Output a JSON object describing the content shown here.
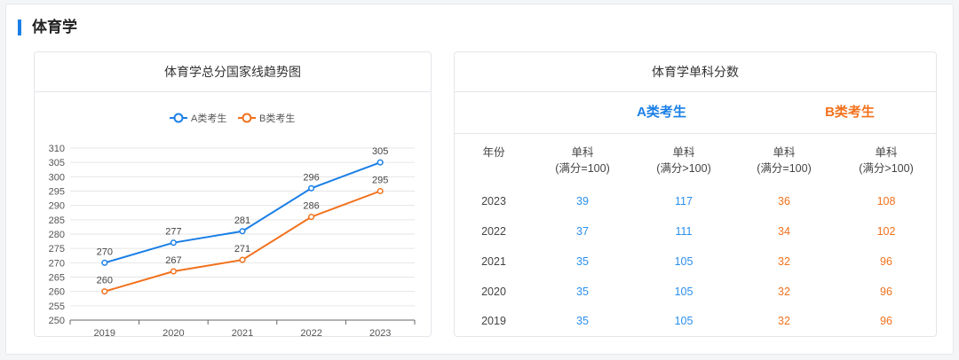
{
  "section": {
    "title": "体育学"
  },
  "chart_card": {
    "title": "体育学总分国家线趋势图"
  },
  "table_card": {
    "title": "体育学单科分数",
    "group_a": "A类考生",
    "group_b": "B类考生",
    "headers": {
      "year": "年份",
      "single100_top": "单科",
      "single100_bottom": "(满分=100)",
      "single_gt100_top": "单科",
      "single_gt100_bottom": "(满分>100)"
    },
    "rows": [
      {
        "year": "2023",
        "a100": "39",
        "a_gt": "117",
        "b100": "36",
        "b_gt": "108"
      },
      {
        "year": "2022",
        "a100": "37",
        "a_gt": "111",
        "b100": "34",
        "b_gt": "102"
      },
      {
        "year": "2021",
        "a100": "35",
        "a_gt": "105",
        "b100": "32",
        "b_gt": "96"
      },
      {
        "year": "2020",
        "a100": "35",
        "a_gt": "105",
        "b100": "32",
        "b_gt": "96"
      },
      {
        "year": "2019",
        "a100": "35",
        "a_gt": "105",
        "b100": "32",
        "b_gt": "96"
      }
    ]
  },
  "colors": {
    "a": "#1a7fe6",
    "b": "#f2711c",
    "accent": "#1a7fe6"
  },
  "chart_data": {
    "type": "line",
    "title": "体育学总分国家线趋势图",
    "categories": [
      "2019",
      "2020",
      "2021",
      "2022",
      "2023"
    ],
    "series": [
      {
        "name": "A类考生",
        "values": [
          270,
          277,
          281,
          296,
          305
        ]
      },
      {
        "name": "B类考生",
        "values": [
          260,
          267,
          271,
          286,
          295
        ]
      }
    ],
    "ylim": [
      250,
      310
    ],
    "yticks": [
      250,
      255,
      260,
      265,
      270,
      275,
      280,
      285,
      290,
      295,
      300,
      305,
      310
    ],
    "legend": "top-center",
    "grid": true
  }
}
